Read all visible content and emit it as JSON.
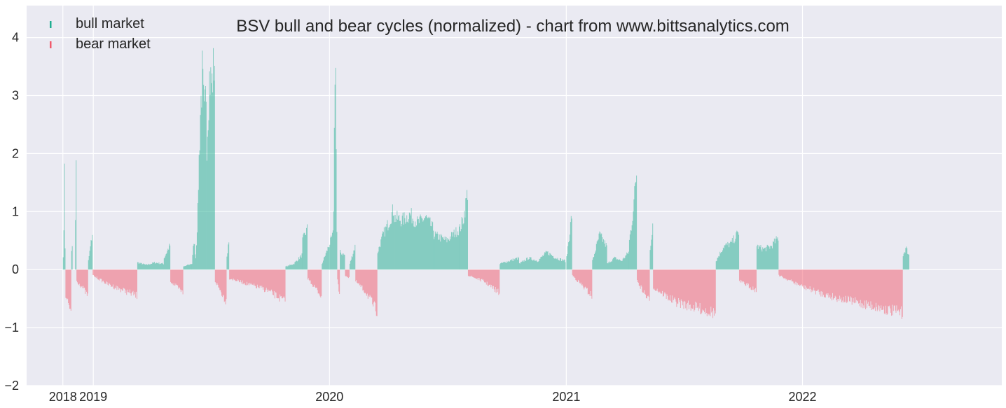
{
  "chart_data": {
    "type": "bar",
    "title": "BSV bull and bear cycles (normalized)  - chart from www.bittsanalytics.com",
    "xlabel": "",
    "ylabel": "",
    "x_start": "2018-11-15",
    "x_end": "2022-06-30",
    "xlim": [
      "2018-09-20",
      "2022-11-05"
    ],
    "ylim": [
      -2,
      4.55
    ],
    "yticks": [
      -2,
      -1,
      0,
      1,
      2,
      3,
      4
    ],
    "yticklabels": [
      "−2",
      "−1",
      "0",
      "1",
      "2",
      "3",
      "4"
    ],
    "xticks": [
      {
        "date": "2018-11-15",
        "label": "2018"
      },
      {
        "date": "2019-01-01",
        "label": "2019"
      },
      {
        "date": "2020-01-01",
        "label": "2020"
      },
      {
        "date": "2021-01-01",
        "label": "2021"
      },
      {
        "date": "2022-01-01",
        "label": "2022"
      }
    ],
    "grid": true,
    "legend": {
      "position": "top-left",
      "entries": [
        {
          "name": "bull market",
          "color": "#1fae90"
        },
        {
          "name": "bear market",
          "color": "#f15a6c"
        }
      ]
    },
    "colors": {
      "bull": "#1fae90",
      "bear": "#f15a6c",
      "background": "#eaeaf2",
      "grid": "#ffffff"
    },
    "series": [
      {
        "name": "bull market",
        "segments": [
          [
            "2018-11-15",
            "2018-11-19",
            [
              0.25,
              0.6,
              1.95,
              0.4
            ]
          ],
          [
            "2018-11-28",
            "2018-11-30",
            [
              0.3,
              0.4
            ]
          ],
          [
            "2018-12-04",
            "2018-12-06",
            [
              0.9,
              1.75
            ]
          ],
          [
            "2018-12-24",
            "2018-12-31",
            [
              0.15,
              0.62
            ]
          ],
          [
            "2019-03-10",
            "2019-04-20",
            [
              0.12,
              0.08,
              0.12,
              0.1
            ]
          ],
          [
            "2019-04-20",
            "2019-04-30",
            [
              0.2,
              0.42
            ]
          ],
          [
            "2019-05-20",
            "2019-06-02",
            [
              0.05,
              0.1
            ]
          ],
          [
            "2019-06-02",
            "2019-06-12",
            [
              0.1,
              0.5,
              0.2,
              1.0
            ]
          ],
          [
            "2019-06-12",
            "2019-06-25",
            [
              1.5,
              2.7,
              3.35,
              2.6,
              3.1
            ]
          ],
          [
            "2019-06-25",
            "2019-07-08",
            [
              2.2,
              3.3,
              3.2,
              3.65
            ]
          ],
          [
            "2019-07-26",
            "2019-07-30",
            [
              0.2,
              0.55
            ]
          ],
          [
            "2019-10-25",
            "2019-11-20",
            [
              0.05,
              0.1,
              0.25
            ]
          ],
          [
            "2019-11-20",
            "2019-11-28",
            [
              0.5,
              0.7
            ]
          ],
          [
            "2019-12-20",
            "2020-01-07",
            [
              0.1,
              0.35,
              0.6
            ]
          ],
          [
            "2020-01-07",
            "2020-01-13",
            [
              1.1,
              4.2,
              0.6
            ]
          ],
          [
            "2020-01-17",
            "2020-01-25",
            [
              0.3,
              0.25
            ]
          ],
          [
            "2020-02-01",
            "2020-02-10",
            [
              0.1,
              0.4
            ]
          ],
          [
            "2020-03-15",
            "2020-04-10",
            [
              0.3,
              0.6,
              0.8,
              1.05
            ]
          ],
          [
            "2020-04-10",
            "2020-06-10",
            [
              0.9,
              0.85,
              0.95,
              0.8,
              0.9,
              0.7
            ]
          ],
          [
            "2020-06-10",
            "2020-07-20",
            [
              0.6,
              0.5,
              0.7
            ]
          ],
          [
            "2020-07-20",
            "2020-08-02",
            [
              0.7,
              0.9,
              1.35
            ]
          ],
          [
            "2020-09-20",
            "2020-10-20",
            [
              0.1,
              0.15,
              0.2
            ]
          ],
          [
            "2020-10-20",
            "2020-12-31",
            [
              0.1,
              0.2,
              0.15,
              0.3,
              0.2,
              0.15
            ]
          ],
          [
            "2021-01-01",
            "2021-01-10",
            [
              0.2,
              0.95
            ]
          ],
          [
            "2021-02-10",
            "2021-03-05",
            [
              0.15,
              0.6,
              0.4
            ]
          ],
          [
            "2021-03-05",
            "2021-04-08",
            [
              0.1,
              0.2,
              0.15,
              0.3
            ]
          ],
          [
            "2021-04-08",
            "2021-04-20",
            [
              0.5,
              0.8,
              1.2,
              1.7
            ]
          ],
          [
            "2021-05-10",
            "2021-05-15",
            [
              0.35,
              0.8
            ]
          ],
          [
            "2021-08-20",
            "2021-09-25",
            [
              0.15,
              0.4,
              0.45,
              0.65
            ]
          ],
          [
            "2021-10-22",
            "2021-11-25",
            [
              0.4,
              0.35,
              0.4,
              0.55
            ]
          ],
          [
            "2022-06-05",
            "2022-06-15",
            [
              0.25,
              0.38,
              0.25
            ]
          ]
        ]
      },
      {
        "name": "bear market",
        "segments": [
          [
            "2018-11-19",
            "2018-11-28",
            [
              -0.5,
              -0.7
            ]
          ],
          [
            "2018-12-06",
            "2018-12-24",
            [
              -0.2,
              -0.3,
              -0.45
            ]
          ],
          [
            "2018-12-31",
            "2019-03-10",
            [
              -0.1,
              -0.25,
              -0.35,
              -0.45
            ]
          ],
          [
            "2019-04-30",
            "2019-05-20",
            [
              -0.2,
              -0.4
            ]
          ],
          [
            "2019-07-08",
            "2019-07-26",
            [
              -0.2,
              -0.55
            ]
          ],
          [
            "2019-07-30",
            "2019-10-25",
            [
              -0.15,
              -0.25,
              -0.35,
              -0.55
            ]
          ],
          [
            "2019-11-28",
            "2019-12-20",
            [
              -0.15,
              -0.3,
              -0.45
            ]
          ],
          [
            "2020-01-13",
            "2020-01-17",
            [
              -0.2,
              -0.4
            ]
          ],
          [
            "2020-01-25",
            "2020-02-01",
            [
              -0.1,
              -0.15
            ]
          ],
          [
            "2020-02-10",
            "2020-03-15",
            [
              -0.2,
              -0.4,
              -0.72
            ]
          ],
          [
            "2020-08-02",
            "2020-09-20",
            [
              -0.1,
              -0.2,
              -0.4
            ]
          ],
          [
            "2021-01-10",
            "2021-02-10",
            [
              -0.1,
              -0.45
            ]
          ],
          [
            "2021-04-20",
            "2021-05-10",
            [
              -0.2,
              -0.55
            ]
          ],
          [
            "2021-05-15",
            "2021-08-20",
            [
              -0.3,
              -0.55,
              -0.65,
              -0.75
            ]
          ],
          [
            "2021-09-25",
            "2021-10-22",
            [
              -0.2,
              -0.35
            ]
          ],
          [
            "2021-11-25",
            "2022-06-05",
            [
              -0.1,
              -0.3,
              -0.45,
              -0.55,
              -0.65,
              -0.75
            ]
          ]
        ]
      }
    ]
  }
}
